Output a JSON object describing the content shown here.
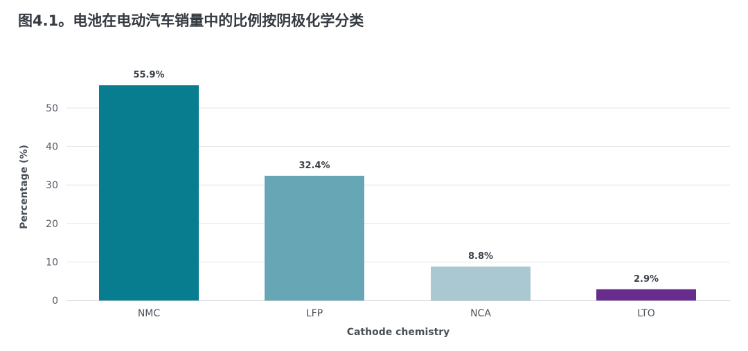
{
  "title": "图4.1。电池在电动汽车销量中的比例按阴极化学分类",
  "chart_data": {
    "type": "bar",
    "title": "图4.1。电池在电动汽车销量中的比例按阴极化学分类",
    "xlabel": "Cathode chemistry",
    "ylabel": "Percentage (%)",
    "categories": [
      "NMC",
      "LFP",
      "NCA",
      "LTO"
    ],
    "values": [
      55.9,
      32.4,
      8.8,
      2.9
    ],
    "value_labels": [
      "55.9%",
      "32.4%",
      "8.8%",
      "2.9%"
    ],
    "colors": [
      "#077d8f",
      "#67a7b5",
      "#a9c8d2",
      "#672c8e"
    ],
    "ylim": [
      0,
      60
    ],
    "yticks": [
      0,
      10,
      20,
      30,
      40,
      50
    ],
    "grid": true,
    "legend": "none"
  }
}
